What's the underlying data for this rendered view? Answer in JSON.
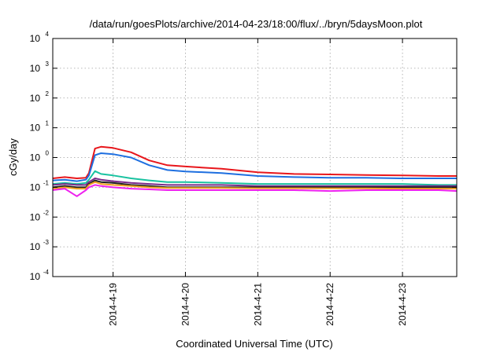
{
  "chart_data": {
    "type": "line",
    "title": "/data/run/goesPlots/archive/2014-04-23/18:00/flux/../bryn/5daysMoon.plot",
    "xlabel": "Coordinated Universal Time (UTC)",
    "ylabel": "cGy/day",
    "yscale": "log",
    "ylim": [
      0.0001,
      10000
    ],
    "xlim": [
      "2014-04-18 04:00",
      "2014-04-23 18:00"
    ],
    "grid": true,
    "y_ticks": [
      {
        "base": "10",
        "exp": "4",
        "value": 10000
      },
      {
        "base": "10",
        "exp": "3",
        "value": 1000
      },
      {
        "base": "10",
        "exp": "2",
        "value": 100
      },
      {
        "base": "10",
        "exp": "1",
        "value": 10
      },
      {
        "base": "10",
        "exp": "0",
        "value": 1
      },
      {
        "base": "10",
        "exp": "-1",
        "value": 0.1
      },
      {
        "base": "10",
        "exp": "-2",
        "value": 0.01
      },
      {
        "base": "10",
        "exp": "-3",
        "value": 0.001
      },
      {
        "base": "10",
        "exp": "-4",
        "value": 0.0001
      }
    ],
    "x_ticks": [
      {
        "label": "2014-4-19",
        "value": "2014-04-19 00:00"
      },
      {
        "label": "2014-4-20",
        "value": "2014-04-20 00:00"
      },
      {
        "label": "2014-4-21",
        "value": "2014-04-21 00:00"
      },
      {
        "label": "2014-4-22",
        "value": "2014-04-22 00:00"
      },
      {
        "label": "2014-4-23",
        "value": "2014-04-23 00:00"
      }
    ],
    "x": [
      "2014-04-18 04:00",
      "2014-04-18 08:00",
      "2014-04-18 12:00",
      "2014-04-18 15:00",
      "2014-04-18 16:00",
      "2014-04-18 18:00",
      "2014-04-18 20:00",
      "2014-04-19 00:00",
      "2014-04-19 06:00",
      "2014-04-19 12:00",
      "2014-04-19 18:00",
      "2014-04-20 00:00",
      "2014-04-20 12:00",
      "2014-04-21 00:00",
      "2014-04-21 12:00",
      "2014-04-22 00:00",
      "2014-04-22 12:00",
      "2014-04-23 00:00",
      "2014-04-23 12:00",
      "2014-04-23 18:00"
    ],
    "series": [
      {
        "color": "#e8161b",
        "values": [
          0.2,
          0.22,
          0.2,
          0.21,
          0.3,
          2.0,
          2.3,
          2.1,
          1.5,
          0.8,
          0.55,
          0.5,
          0.42,
          0.32,
          0.28,
          0.27,
          0.26,
          0.25,
          0.24,
          0.24
        ]
      },
      {
        "color": "#1e6fe0",
        "values": [
          0.17,
          0.18,
          0.16,
          0.18,
          0.25,
          1.2,
          1.4,
          1.3,
          1.0,
          0.55,
          0.38,
          0.34,
          0.3,
          0.24,
          0.22,
          0.21,
          0.21,
          0.2,
          0.2,
          0.2
        ]
      },
      {
        "color": "#19c2a0",
        "values": [
          0.13,
          0.14,
          0.13,
          0.14,
          0.18,
          0.35,
          0.28,
          0.25,
          0.2,
          0.17,
          0.15,
          0.15,
          0.14,
          0.13,
          0.13,
          0.13,
          0.13,
          0.13,
          0.12,
          0.12
        ]
      },
      {
        "color": "#7a2a8a",
        "values": [
          0.12,
          0.13,
          0.12,
          0.12,
          0.15,
          0.2,
          0.18,
          0.16,
          0.14,
          0.13,
          0.12,
          0.12,
          0.12,
          0.11,
          0.11,
          0.11,
          0.11,
          0.11,
          0.11,
          0.11
        ]
      },
      {
        "color": "#202020",
        "values": [
          0.1,
          0.11,
          0.1,
          0.1,
          0.13,
          0.17,
          0.15,
          0.14,
          0.12,
          0.11,
          0.1,
          0.1,
          0.1,
          0.1,
          0.1,
          0.1,
          0.1,
          0.1,
          0.1,
          0.1
        ]
      },
      {
        "color": "#f0a020",
        "values": [
          0.09,
          0.1,
          0.09,
          0.09,
          0.12,
          0.15,
          0.13,
          0.12,
          0.11,
          0.1,
          0.095,
          0.095,
          0.095,
          0.093,
          0.093,
          0.092,
          0.092,
          0.09,
          0.09,
          0.09
        ]
      },
      {
        "color": "#ee22ee",
        "values": [
          0.08,
          0.09,
          0.05,
          0.08,
          0.1,
          0.12,
          0.11,
          0.1,
          0.09,
          0.085,
          0.08,
          0.08,
          0.08,
          0.08,
          0.08,
          0.075,
          0.08,
          0.08,
          0.08,
          0.075
        ]
      }
    ]
  }
}
